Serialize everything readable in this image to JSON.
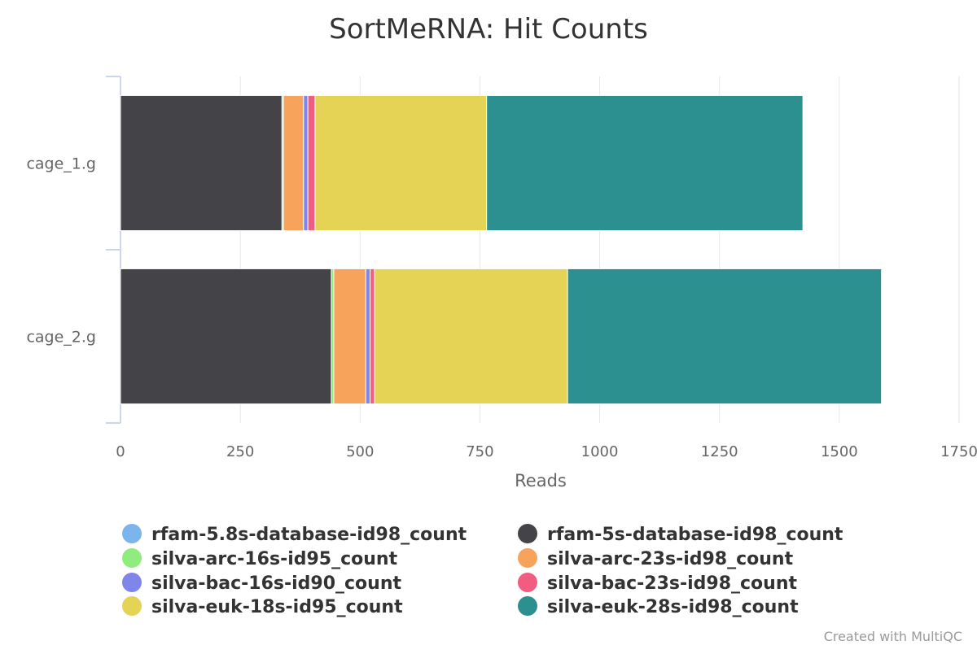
{
  "chart_data": {
    "type": "bar",
    "orientation": "horizontal",
    "stacked": true,
    "title": "SortMeRNA: Hit Counts",
    "xlabel": "Reads",
    "ylabel": "",
    "categories": [
      "cage_1.g",
      "cage_2.g"
    ],
    "xlim": [
      0,
      1750
    ],
    "x_ticks": [
      "0",
      "250",
      "500",
      "750",
      "1000",
      "1250",
      "1500",
      "1750"
    ],
    "grid": true,
    "legend_position": "bottom",
    "series": [
      {
        "name": "rfam-5.8s-database-id98_count",
        "color": "#7cb5ec",
        "values": [
          0,
          0
        ]
      },
      {
        "name": "rfam-5s-database-id98_count",
        "color": "#434348",
        "values": [
          337,
          440
        ]
      },
      {
        "name": "silva-arc-16s-id95_count",
        "color": "#90ed7d",
        "values": [
          3,
          5
        ]
      },
      {
        "name": "silva-arc-23s-id98_count",
        "color": "#f7a35c",
        "values": [
          42,
          67
        ]
      },
      {
        "name": "silva-bac-16s-id90_count",
        "color": "#8085e9",
        "values": [
          9,
          9
        ]
      },
      {
        "name": "silva-bac-23s-id98_count",
        "color": "#f15c80",
        "values": [
          15,
          9
        ]
      },
      {
        "name": "silva-euk-18s-id95_count",
        "color": "#e4d354",
        "values": [
          358,
          403
        ]
      },
      {
        "name": "silva-euk-28s-id98_count",
        "color": "#2b908f",
        "values": [
          660,
          655
        ]
      }
    ]
  },
  "credit": "Created with MultiQC"
}
